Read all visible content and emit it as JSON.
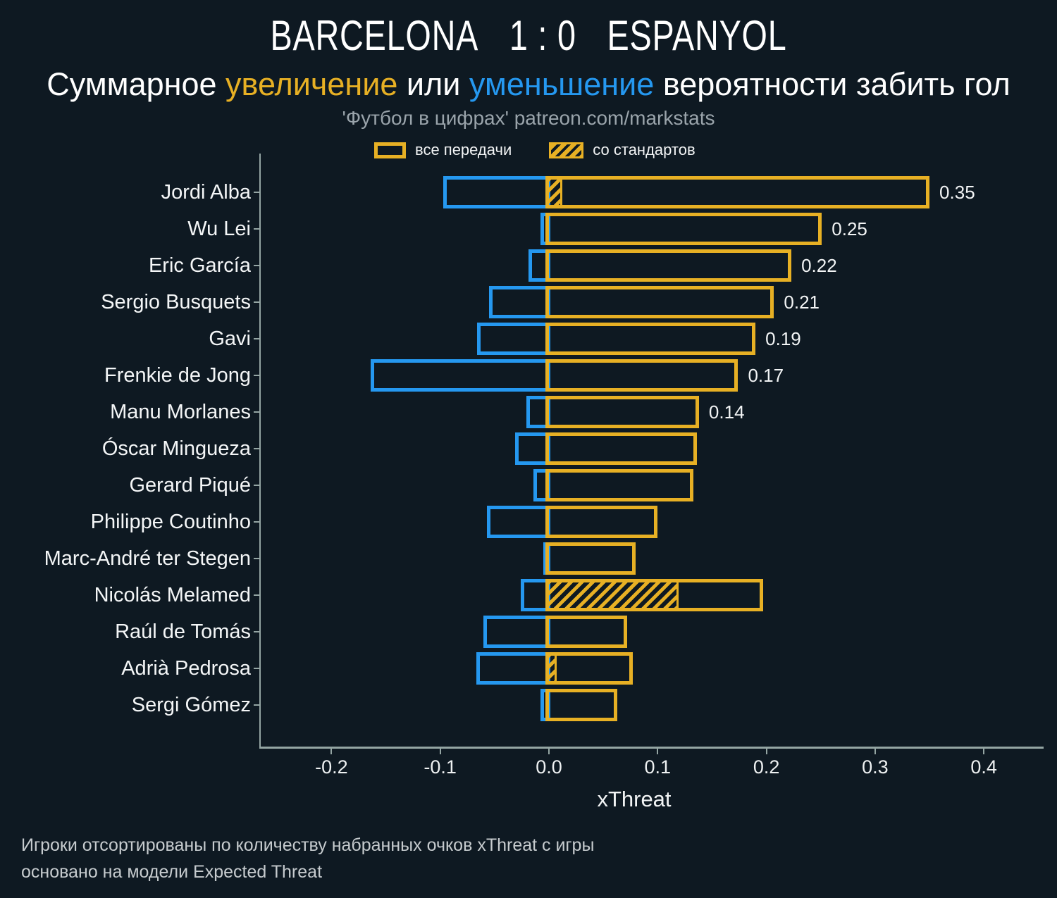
{
  "colors": {
    "background": "#0e1922",
    "increase": "#e7b024",
    "decrease": "#2598f0",
    "axis": "#94a5a3",
    "text": "#f2f4f5",
    "muted": "#9aa4ab",
    "footnote": "#c6cbce"
  },
  "header": {
    "home": "BARCELONA",
    "score": "1 : 0",
    "away": "ESPANYOL",
    "subtitle": {
      "p1": "Суммарное ",
      "p2": "увеличение",
      "p3": " или ",
      "p4": "уменьшение",
      "p5": " вероятности забить гол"
    },
    "credit": "'Футбол в цифрах' patreon.com/markstats"
  },
  "legend": {
    "all_passes": "все передачи",
    "set_pieces": "со стандартов"
  },
  "chart_data": {
    "type": "bar",
    "orientation": "horizontal",
    "title": "BARCELONA 1 : 0 ESPANYOL",
    "xlabel": "xThreat",
    "xlim": [
      -0.265,
      0.455
    ],
    "xticks": [
      "-0.2",
      "-0.1",
      "0.0",
      "0.1",
      "0.2",
      "0.3",
      "0.4"
    ],
    "grid": false,
    "legend_position": "top",
    "bar_style": "outlined, increase bars start at 0 going right (yellow), decrease bars end at 0 going left (blue), set-piece portion hatched from 0",
    "players": [
      {
        "name": "Jordi Alba",
        "all_passes": 0.35,
        "set_pieces": 0.012,
        "decrease": -0.097,
        "label": "0.35"
      },
      {
        "name": "Wu Lei",
        "all_passes": 0.251,
        "set_pieces": 0,
        "decrease": -0.008,
        "label": "0.25"
      },
      {
        "name": "Eric García",
        "all_passes": 0.223,
        "set_pieces": 0,
        "decrease": -0.019,
        "label": "0.22"
      },
      {
        "name": "Sergio Busquets",
        "all_passes": 0.207,
        "set_pieces": 0,
        "decrease": -0.055,
        "label": "0.21"
      },
      {
        "name": "Gavi",
        "all_passes": 0.19,
        "set_pieces": 0,
        "decrease": -0.066,
        "label": "0.19"
      },
      {
        "name": "Frenkie de Jong",
        "all_passes": 0.174,
        "set_pieces": 0,
        "decrease": -0.164,
        "label": "0.17"
      },
      {
        "name": "Manu Morlanes",
        "all_passes": 0.138,
        "set_pieces": 0,
        "decrease": -0.021,
        "label": "0.14"
      },
      {
        "name": "Óscar Mingueza",
        "all_passes": 0.136,
        "set_pieces": 0,
        "decrease": -0.031,
        "label": null
      },
      {
        "name": "Gerard Piqué",
        "all_passes": 0.133,
        "set_pieces": 0,
        "decrease": -0.014,
        "label": null
      },
      {
        "name": "Philippe Coutinho",
        "all_passes": 0.1,
        "set_pieces": 0,
        "decrease": -0.057,
        "label": null
      },
      {
        "name": "Marc-André ter Stegen",
        "all_passes": 0.08,
        "set_pieces": 0,
        "decrease": -0.005,
        "label": null
      },
      {
        "name": "Nicolás Melamed",
        "all_passes": 0.197,
        "set_pieces": 0.119,
        "decrease": -0.026,
        "label": null
      },
      {
        "name": "Raúl de Tomás",
        "all_passes": 0.072,
        "set_pieces": 0,
        "decrease": -0.06,
        "label": null
      },
      {
        "name": "Adrià Pedrosa",
        "all_passes": 0.077,
        "set_pieces": 0.007,
        "decrease": -0.067,
        "label": null
      },
      {
        "name": "Sergi Gómez",
        "all_passes": 0.063,
        "set_pieces": 0,
        "decrease": -0.008,
        "label": null
      }
    ]
  },
  "footnotes": [
    "Игроки отсортированы по количеству набранных очков xThreat с игры",
    "основано на модели Expected Threat"
  ]
}
